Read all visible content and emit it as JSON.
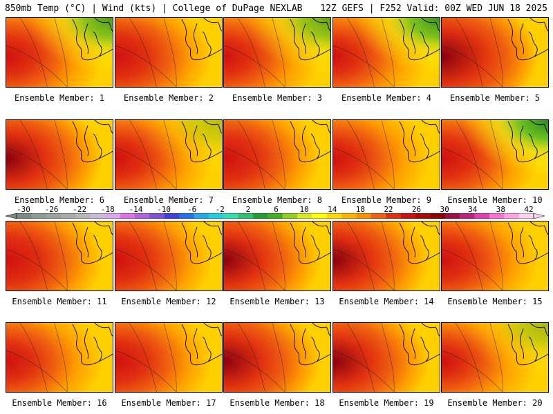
{
  "header": {
    "left": "850mb Temp (°C) | Wind (kts) | College of DuPage NEXLAB",
    "right": "12Z GEFS | F252 Valid: 00Z WED JUN 18 2025"
  },
  "member_label_prefix": "Ensemble Member:",
  "members": [
    {
      "n": "1",
      "label": "Ensemble Member: 1",
      "warmth": 0.45,
      "cool_ne": 0.6
    },
    {
      "n": "2",
      "label": "Ensemble Member: 2",
      "warmth": 0.6,
      "cool_ne": 0.0
    },
    {
      "n": "3",
      "label": "Ensemble Member: 3",
      "warmth": 0.4,
      "cool_ne": 0.5
    },
    {
      "n": "4",
      "label": "Ensemble Member: 4",
      "warmth": 0.35,
      "cool_ne": 0.7
    },
    {
      "n": "5",
      "label": "Ensemble Member: 5",
      "warmth": 0.9,
      "cool_ne": 0.0
    },
    {
      "n": "6",
      "label": "Ensemble Member: 6",
      "warmth": 0.8,
      "cool_ne": 0.0
    },
    {
      "n": "7",
      "label": "Ensemble Member: 7",
      "warmth": 0.45,
      "cool_ne": 0.1
    },
    {
      "n": "8",
      "label": "Ensemble Member: 8",
      "warmth": 0.65,
      "cool_ne": 0.0
    },
    {
      "n": "9",
      "label": "Ensemble Member: 9",
      "warmth": 0.4,
      "cool_ne": 0.0
    },
    {
      "n": "10",
      "label": "Ensemble Member: 10",
      "warmth": 0.5,
      "cool_ne": 0.9
    },
    {
      "n": "11",
      "label": "Ensemble Member: 11",
      "warmth": 0.7,
      "cool_ne": 0.0
    },
    {
      "n": "12",
      "label": "Ensemble Member: 12",
      "warmth": 0.6,
      "cool_ne": 0.0
    },
    {
      "n": "13",
      "label": "Ensemble Member: 13",
      "warmth": 0.75,
      "cool_ne": 0.0
    },
    {
      "n": "14",
      "label": "Ensemble Member: 14",
      "warmth": 0.75,
      "cool_ne": 0.0
    },
    {
      "n": "15",
      "label": "Ensemble Member: 15",
      "warmth": 0.5,
      "cool_ne": 0.0
    },
    {
      "n": "16",
      "label": "Ensemble Member: 16",
      "warmth": 0.45,
      "cool_ne": 0.0
    },
    {
      "n": "17",
      "label": "Ensemble Member: 17",
      "warmth": 0.55,
      "cool_ne": 0.0
    },
    {
      "n": "18",
      "label": "Ensemble Member: 18",
      "warmth": 0.8,
      "cool_ne": 0.0
    },
    {
      "n": "19",
      "label": "Ensemble Member: 19",
      "warmth": 0.75,
      "cool_ne": 0.0
    },
    {
      "n": "20",
      "label": "Ensemble Member: 20",
      "warmth": 0.3,
      "cool_ne": 0.2
    }
  ],
  "colorbar": {
    "ticks": [
      "-30",
      "-26",
      "-22",
      "-18",
      "-14",
      "-10",
      "-6",
      "-2",
      "2",
      "6",
      "10",
      "14",
      "18",
      "22",
      "26",
      "30",
      "34",
      "38",
      "42"
    ],
    "colors": [
      "#7a8c82",
      "#8a9d94",
      "#9aa39f",
      "#a9aaaa",
      "#b7b7b7",
      "#c9b8d8",
      "#d9a8e8",
      "#e070e8",
      "#b060e0",
      "#8050d8",
      "#4040e0",
      "#2070f0",
      "#20a8f0",
      "#20d0e0",
      "#30e0b0",
      "#30c070",
      "#20a030",
      "#40b020",
      "#90d020",
      "#d8e820",
      "#ffff00",
      "#ffd800",
      "#ffb000",
      "#ff9000",
      "#f06010",
      "#e03010",
      "#d01010",
      "#b00808",
      "#900000",
      "#a01040",
      "#c02080",
      "#e040b0",
      "#ff70d0",
      "#ffa0e0",
      "#ffd0f0"
    ]
  }
}
